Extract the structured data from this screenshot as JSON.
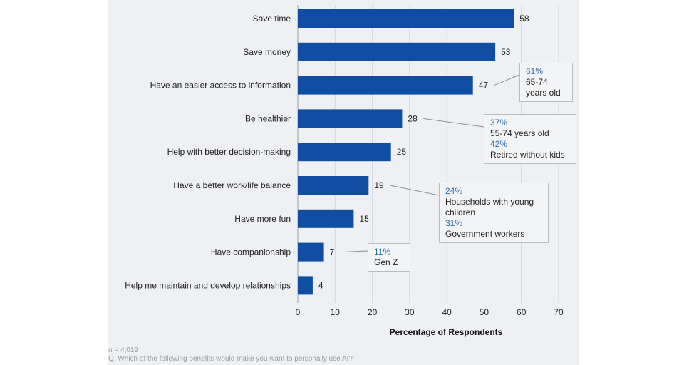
{
  "chart_data": {
    "type": "bar",
    "orientation": "horizontal",
    "categories": [
      "Save time",
      "Save money",
      "Have an easier access to information",
      "Be healthier",
      "Help with better decision-making",
      "Have a better work/life balance",
      "Have more fun",
      "Have companionship",
      "Help me maintain and develop relationships"
    ],
    "values": [
      58,
      53,
      47,
      28,
      25,
      19,
      15,
      7,
      4
    ],
    "xlabel": "Percentage of Respondents",
    "xlim": [
      0,
      70
    ],
    "xticks": [
      "0",
      "10",
      "20",
      "30",
      "40",
      "50",
      "60",
      "70"
    ],
    "grid": "vertical",
    "bar_color": "#0f4ea3"
  },
  "callouts": [
    {
      "lines": [
        {
          "pct": "61%",
          "desc": "65-74 years old"
        }
      ]
    },
    {
      "lines": [
        {
          "pct": "37%",
          "desc": "55-74 years old"
        },
        {
          "pct": "42%",
          "desc": "Retired without kids"
        }
      ]
    },
    {
      "lines": [
        {
          "pct": "24%",
          "desc": "Households with young children"
        },
        {
          "pct": "31%",
          "desc": "Government workers"
        }
      ]
    },
    {
      "lines": [
        {
          "pct": "11%",
          "desc": "Gen Z"
        }
      ]
    }
  ],
  "footnotes": {
    "sample": "n = 4,019",
    "question": "Q. Which of the following benefits would make you want to personally use AI?"
  },
  "colors": {
    "accent": "#2e6db4",
    "panel": "#eef0f3"
  }
}
